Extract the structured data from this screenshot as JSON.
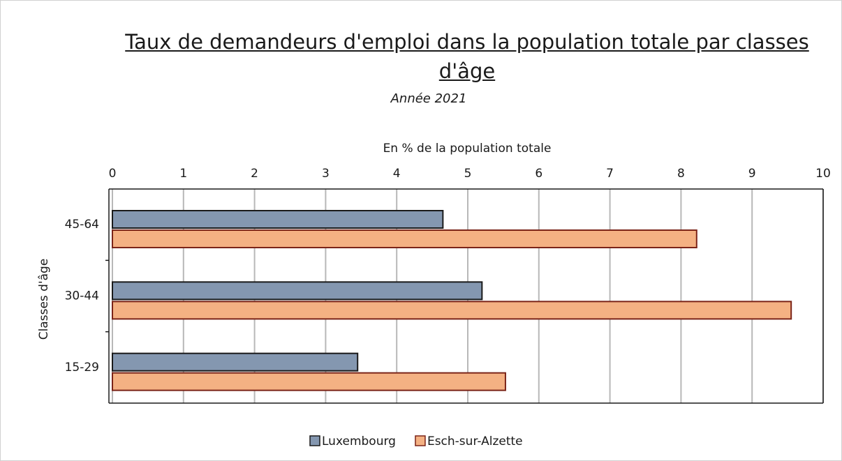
{
  "chart_data": {
    "type": "barh",
    "title": "Taux de demandeurs d'emploi dans la population totale par classes d'âge",
    "subtitle": "Année 2021",
    "x_label": "En % de la population totale",
    "y_label": "Classes d'âge",
    "categories": [
      "45-64",
      "30-44",
      "15-29"
    ],
    "series": [
      {
        "name": "Luxembourg",
        "color": "#8497b0",
        "edge": "#1a1a1a",
        "values": [
          4.65,
          5.2,
          3.45
        ]
      },
      {
        "name": "Esch-sur-Alzette",
        "color": "#f4b183",
        "edge": "#7b2418",
        "values": [
          8.22,
          9.55,
          5.53
        ]
      }
    ],
    "xlim": [
      0,
      10
    ],
    "xticks": [
      0,
      1,
      2,
      3,
      4,
      5,
      6,
      7,
      8,
      9,
      10
    ],
    "grid": true,
    "legend": "bottom"
  }
}
